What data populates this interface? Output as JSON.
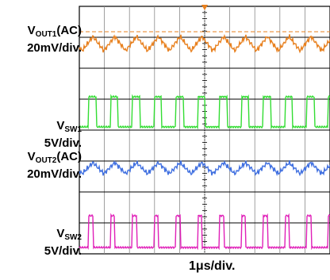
{
  "chart_data": {
    "type": "line",
    "x_scale_label": "1μs/div.",
    "grid": true,
    "divisions": {
      "horizontal": 10,
      "vertical": 8
    },
    "series": [
      {
        "label": "V",
        "sub": "OUT1",
        "suffix": "(AC)",
        "scale": "20mV/div.",
        "color": "#e8801e",
        "shape": "ripple",
        "cycles_visible": 11.5
      },
      {
        "label": "V",
        "sub": "SW1",
        "suffix": "",
        "scale": "5V/div.",
        "color": "#33dd33",
        "shape": "square",
        "cycles_visible": 11.5,
        "duty": 0.35
      },
      {
        "label": "V",
        "sub": "OUT2",
        "suffix": "(AC)",
        "scale": "20mV/div.",
        "color": "#3f6fe0",
        "shape": "ripple",
        "cycles_visible": 11.5
      },
      {
        "label": "V",
        "sub": "SW2",
        "suffix": "",
        "scale": "5V/div.",
        "color": "#e020b8",
        "shape": "square",
        "cycles_visible": 11.5,
        "duty": 0.2
      }
    ]
  }
}
